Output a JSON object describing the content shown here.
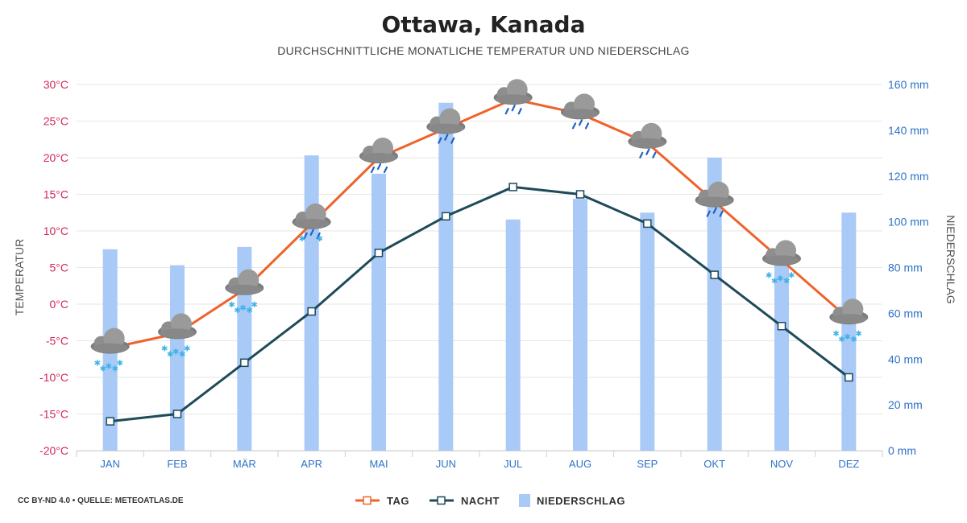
{
  "title": "Ottawa, Kanada",
  "subtitle": "DURCHSCHNITTLICHE MONATLICHE TEMPERATUR UND NIEDERSCHLAG",
  "credit": "CC BY-ND 4.0 • QUELLE: METEOATLAS.DE",
  "colors": {
    "day": "#f0622a",
    "night": "#1f4a5a",
    "precip": "#a9c9f7",
    "left_axis": "#d6285a",
    "right_axis": "#2e72c8"
  },
  "legend": [
    {
      "label": "TAG",
      "icon": "day-line-marker-icon"
    },
    {
      "label": "NACHT",
      "icon": "night-line-marker-icon"
    },
    {
      "label": "NIEDERSCHLAG",
      "icon": "precipitation-bar-icon"
    }
  ],
  "chart_data": {
    "type": "line+bar",
    "title": "Ottawa, Kanada",
    "subtitle": "DURCHSCHNITTLICHE MONATLICHE TEMPERATUR UND NIEDERSCHLAG",
    "categories": [
      "JAN",
      "FEB",
      "MÄR",
      "APR",
      "MAI",
      "JUN",
      "JUL",
      "AUG",
      "SEP",
      "OKT",
      "NOV",
      "DEZ"
    ],
    "ylabel_left": "TEMPERATUR",
    "ylabel_right": "NIEDERSCHLAG",
    "ylim_left": [
      -20,
      30
    ],
    "ylim_right": [
      0,
      160
    ],
    "yticks_left": [
      "30°C",
      "25°C",
      "20°C",
      "15°C",
      "10°C",
      "5°C",
      "0°C",
      "-5°C",
      "-10°C",
      "-15°C",
      "-20°C"
    ],
    "yticks_right": [
      "160 mm",
      "140 mm",
      "120 mm",
      "100 mm",
      "80 mm",
      "60 mm",
      "40 mm",
      "20 mm",
      "0 mm"
    ],
    "grid": true,
    "legend_position": "bottom",
    "series": [
      {
        "name": "TAG",
        "kind": "line",
        "axis": "left",
        "values": [
          -6,
          -4,
          2,
          11,
          20,
          24,
          28,
          26,
          22,
          14,
          6,
          -2
        ]
      },
      {
        "name": "NACHT",
        "kind": "line",
        "axis": "left",
        "values": [
          -16,
          -15,
          -8,
          -1,
          7,
          12,
          16,
          15,
          11,
          4,
          -3,
          -10
        ]
      },
      {
        "name": "NIEDERSCHLAG",
        "kind": "bar",
        "axis": "right",
        "values": [
          88,
          81,
          89,
          129,
          121,
          152,
          101,
          110,
          104,
          128,
          83,
          104
        ]
      }
    ],
    "weather_icons": [
      "cloud-snow-icon",
      "cloud-snow-icon",
      "cloud-snow-icon",
      "cloud-rain-snow-icon",
      "cloud-rain-icon",
      "cloud-rain-icon",
      "cloud-rain-icon",
      "cloud-rain-icon",
      "cloud-rain-icon",
      "cloud-rain-icon",
      "cloud-snow-icon",
      "cloud-snow-icon"
    ]
  }
}
